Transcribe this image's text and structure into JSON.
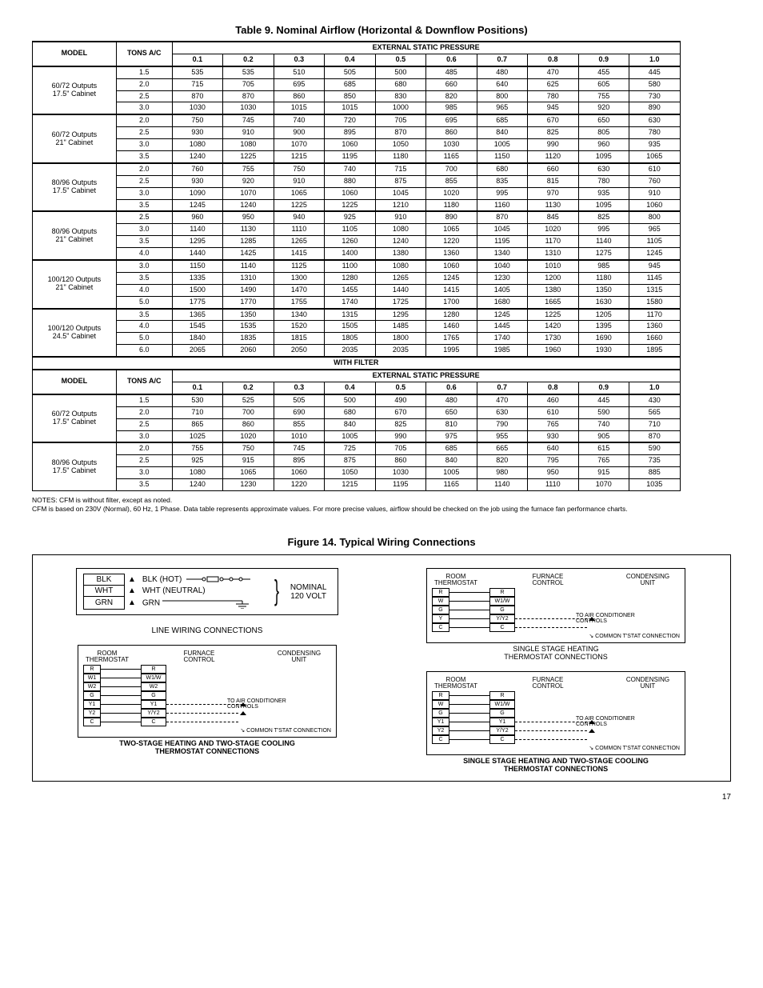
{
  "table": {
    "title": "Table 9. Nominal Airflow (Horizontal & Downflow Positions)",
    "colgroup_widths_pct": [
      12,
      8,
      7.27,
      7.27,
      7.27,
      7.27,
      7.27,
      7.27,
      7.27,
      7.27,
      7.27,
      7.27,
      7.27
    ],
    "header_row1": [
      "MODEL",
      "TONS A/C",
      "EXTERNAL STATIC PRESSURE"
    ],
    "header_row2": [
      "0.1",
      "0.2",
      "0.3",
      "0.4",
      "0.5",
      "0.6",
      "0.7",
      "0.8",
      "0.9",
      "1.0"
    ],
    "groups": [
      {
        "model": "60/72 Outputs\n17.5\" Cabinet",
        "tons": [
          "1.5",
          "2.0",
          "2.5",
          "3.0"
        ],
        "rows": [
          [
            "535",
            "535",
            "510",
            "505",
            "500",
            "485",
            "480",
            "470",
            "455",
            "445"
          ],
          [
            "715",
            "705",
            "695",
            "685",
            "680",
            "660",
            "640",
            "625",
            "605",
            "580"
          ],
          [
            "870",
            "870",
            "860",
            "850",
            "830",
            "820",
            "800",
            "780",
            "755",
            "730"
          ],
          [
            "1030",
            "1030",
            "1015",
            "1015",
            "1000",
            "985",
            "965",
            "945",
            "920",
            "890"
          ]
        ]
      },
      {
        "model": "60/72 Outputs\n21\" Cabinet",
        "tons": [
          "2.0",
          "2.5",
          "3.0",
          "3.5"
        ],
        "rows": [
          [
            "750",
            "745",
            "740",
            "720",
            "705",
            "695",
            "685",
            "670",
            "650",
            "630"
          ],
          [
            "930",
            "910",
            "900",
            "895",
            "870",
            "860",
            "840",
            "825",
            "805",
            "780"
          ],
          [
            "1080",
            "1080",
            "1070",
            "1060",
            "1050",
            "1030",
            "1005",
            "990",
            "960",
            "935"
          ],
          [
            "1240",
            "1225",
            "1215",
            "1195",
            "1180",
            "1165",
            "1150",
            "1120",
            "1095",
            "1065"
          ]
        ]
      },
      {
        "model": "80/96 Outputs\n17.5\" Cabinet",
        "tons": [
          "2.0",
          "2.5",
          "3.0",
          "3.5"
        ],
        "rows": [
          [
            "760",
            "755",
            "750",
            "740",
            "715",
            "700",
            "680",
            "660",
            "630",
            "610"
          ],
          [
            "930",
            "920",
            "910",
            "880",
            "875",
            "855",
            "835",
            "815",
            "780",
            "760"
          ],
          [
            "1090",
            "1070",
            "1065",
            "1060",
            "1045",
            "1020",
            "995",
            "970",
            "935",
            "910"
          ],
          [
            "1245",
            "1240",
            "1225",
            "1225",
            "1210",
            "1180",
            "1160",
            "1130",
            "1095",
            "1060"
          ]
        ]
      },
      {
        "model": "80/96 Outputs\n21\" Cabinet",
        "tons": [
          "2.5",
          "3.0",
          "3.5",
          "4.0"
        ],
        "rows": [
          [
            "960",
            "950",
            "940",
            "925",
            "910",
            "890",
            "870",
            "845",
            "825",
            "800"
          ],
          [
            "1140",
            "1130",
            "1110",
            "1105",
            "1080",
            "1065",
            "1045",
            "1020",
            "995",
            "965"
          ],
          [
            "1295",
            "1285",
            "1265",
            "1260",
            "1240",
            "1220",
            "1195",
            "1170",
            "1140",
            "1105"
          ],
          [
            "1440",
            "1425",
            "1415",
            "1400",
            "1380",
            "1360",
            "1340",
            "1310",
            "1275",
            "1245"
          ]
        ]
      },
      {
        "model": "100/120 Outputs\n21\" Cabinet",
        "tons": [
          "3.0",
          "3.5",
          "4.0",
          "5.0"
        ],
        "rows": [
          [
            "1150",
            "1140",
            "1125",
            "1100",
            "1080",
            "1060",
            "1040",
            "1010",
            "985",
            "945"
          ],
          [
            "1335",
            "1310",
            "1300",
            "1280",
            "1265",
            "1245",
            "1230",
            "1200",
            "1180",
            "1145"
          ],
          [
            "1500",
            "1490",
            "1470",
            "1455",
            "1440",
            "1415",
            "1405",
            "1380",
            "1350",
            "1315"
          ],
          [
            "1775",
            "1770",
            "1755",
            "1740",
            "1725",
            "1700",
            "1680",
            "1665",
            "1630",
            "1580"
          ]
        ]
      },
      {
        "model": "100/120 Outputs\n24.5\" Cabinet",
        "tons": [
          "3.5",
          "4.0",
          "5.0",
          "6.0"
        ],
        "rows": [
          [
            "1365",
            "1350",
            "1340",
            "1315",
            "1295",
            "1280",
            "1245",
            "1225",
            "1205",
            "1170"
          ],
          [
            "1545",
            "1535",
            "1520",
            "1505",
            "1485",
            "1460",
            "1445",
            "1420",
            "1395",
            "1360"
          ],
          [
            "1840",
            "1835",
            "1815",
            "1805",
            "1800",
            "1765",
            "1740",
            "1730",
            "1690",
            "1660"
          ],
          [
            "2065",
            "2060",
            "2050",
            "2035",
            "2035",
            "1995",
            "1985",
            "1960",
            "1930",
            "1895"
          ]
        ]
      }
    ],
    "spacer_label": "WITH FILTER",
    "groups2": [
      {
        "model": "60/72 Outputs\n17.5\" Cabinet",
        "tons": [
          "1.5",
          "2.0",
          "2.5",
          "3.0"
        ],
        "rows": [
          [
            "530",
            "525",
            "505",
            "500",
            "490",
            "480",
            "470",
            "460",
            "445",
            "430"
          ],
          [
            "710",
            "700",
            "690",
            "680",
            "670",
            "650",
            "630",
            "610",
            "590",
            "565"
          ],
          [
            "865",
            "860",
            "855",
            "840",
            "825",
            "810",
            "790",
            "765",
            "740",
            "710"
          ],
          [
            "1025",
            "1020",
            "1010",
            "1005",
            "990",
            "975",
            "955",
            "930",
            "905",
            "870"
          ]
        ],
        "thickBottom": true
      },
      {
        "model": "80/96 Outputs\n17.5\" Cabinet",
        "tons": [
          "2.0",
          "2.5",
          "3.0",
          "3.5"
        ],
        "rows": [
          [
            "755",
            "750",
            "745",
            "725",
            "705",
            "685",
            "665",
            "640",
            "615",
            "590"
          ],
          [
            "925",
            "915",
            "895",
            "875",
            "860",
            "840",
            "820",
            "795",
            "765",
            "735"
          ],
          [
            "1080",
            "1065",
            "1060",
            "1050",
            "1030",
            "1005",
            "980",
            "950",
            "915",
            "885"
          ],
          [
            "1240",
            "1230",
            "1220",
            "1215",
            "1195",
            "1165",
            "1140",
            "1110",
            "1070",
            "1035"
          ]
        ]
      }
    ],
    "notes": [
      "NOTES: CFM is without filter, except as noted.",
      "CFM is based on 230V (Normal), 60 Hz, 1 Phase. Data table represents approximate values. For more precise values, airflow should be checked on the job using the furnace fan performance charts."
    ]
  },
  "figure": {
    "title": "Figure 14. Typical Wiring Connections",
    "line": {
      "rows": [
        [
          "BLK",
          "BLK (HOT)"
        ],
        [
          "WHT",
          "WHT (NEUTRAL)"
        ],
        [
          "GRN",
          "GRN"
        ]
      ],
      "nominal": "NOMINAL\n120 VOLT",
      "caption": "LINE WIRING CONNECTIONS"
    },
    "tstat_headers": {
      "room": "ROOM\nTHERMOSTAT",
      "furnace": "FURNACE\nCONTROL",
      "cond": "CONDENSING\nUNIT",
      "ac": "TO AIR CONDITIONER\nCONTROLS",
      "common": "COMMON T'STAT CONNECTION"
    },
    "boxes": [
      {
        "side": "left",
        "terms": [
          [
            "R",
            "R",
            false,
            false
          ],
          [
            "W1",
            "W1/W",
            false,
            false
          ],
          [
            "W2",
            "W2",
            false,
            false
          ],
          [
            "G",
            "G",
            false,
            false
          ],
          [
            "Y1",
            "Y1",
            true,
            true
          ],
          [
            "Y2",
            "Y/Y2",
            true,
            true
          ],
          [
            "C",
            "C",
            true,
            false
          ]
        ],
        "caption": "TWO-STAGE HEATING AND TWO-STAGE COOLING\nTHERMOSTAT CONNECTIONS",
        "bold": true
      },
      {
        "side": "right",
        "terms": [
          [
            "R",
            "R",
            false,
            false
          ],
          [
            "W",
            "W1/W",
            false,
            false
          ],
          [
            "G",
            "G",
            false,
            false
          ],
          [
            "Y",
            "Y/Y2",
            true,
            true
          ],
          [
            "C",
            "C",
            true,
            false
          ]
        ],
        "caption": "SINGLE STAGE HEATING\nTHERMOSTAT CONNECTIONS",
        "bold": false
      },
      {
        "side": "right",
        "terms": [
          [
            "R",
            "R",
            false,
            false
          ],
          [
            "W",
            "W1/W",
            false,
            false
          ],
          [
            "G",
            "G",
            false,
            false
          ],
          [
            "Y1",
            "Y1",
            true,
            true
          ],
          [
            "Y2",
            "Y/Y2",
            true,
            true
          ],
          [
            "C",
            "C",
            true,
            false
          ]
        ],
        "caption": "SINGLE STAGE HEATING AND TWO-STAGE COOLING\nTHERMOSTAT CONNECTIONS",
        "bold": true
      }
    ]
  },
  "pagenum": "17"
}
